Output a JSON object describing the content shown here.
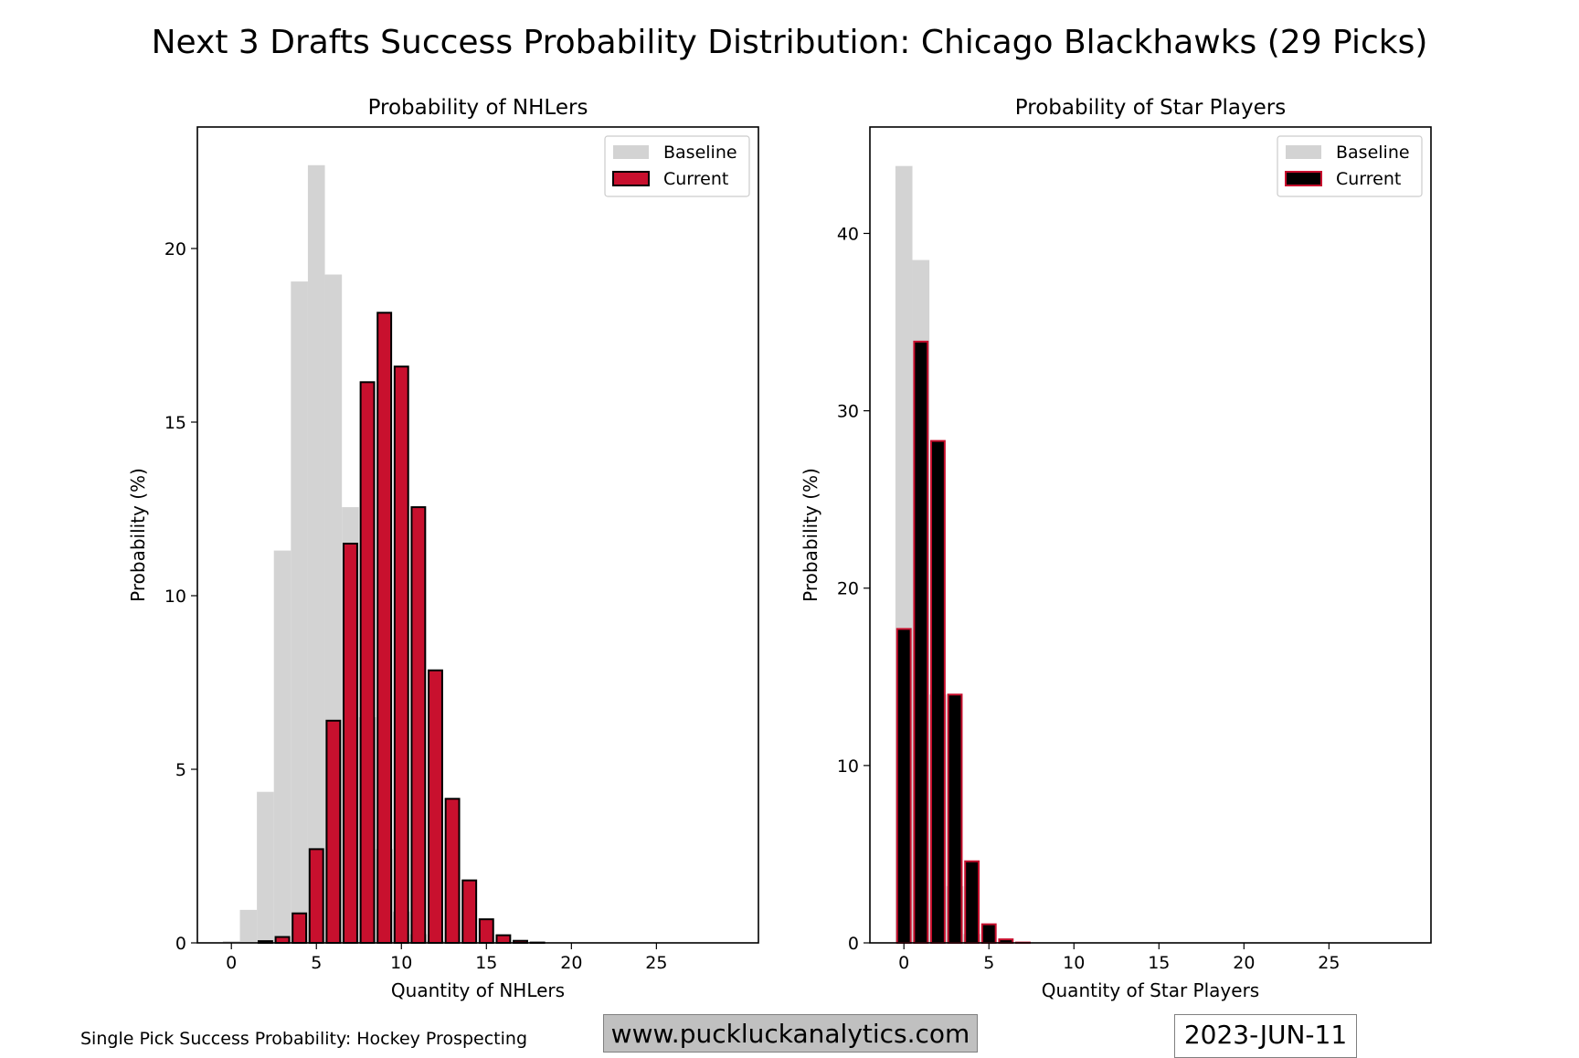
{
  "header": {
    "title": "Next 3 Drafts Success Probability Distribution: Chicago Blackhawks (29 Picks)"
  },
  "footer": {
    "source": "Single Pick Success Probability: Hockey Prospecting",
    "url": "www.puckluckanalytics.com",
    "date": "2023-JUN-11"
  },
  "colors": {
    "baseline": "#d3d3d3",
    "nhl_current": "#c8102e",
    "star_current": "#000000",
    "edge_red": "#c8102e",
    "edge_black": "#000000"
  },
  "chart_data": [
    {
      "type": "bar",
      "title": "Probability of NHLers",
      "xlabel": "Quantity of NHLers",
      "ylabel": "Probability (%)",
      "xlim": [
        -2,
        31
      ],
      "ylim": [
        0,
        23.5
      ],
      "xticks": [
        0,
        5,
        10,
        15,
        20,
        25
      ],
      "yticks": [
        0,
        5,
        10,
        15,
        20
      ],
      "legend": [
        "Baseline",
        "Current"
      ],
      "legend_loc": "upper right",
      "series": [
        {
          "name": "Baseline",
          "x": [
            0,
            1,
            2,
            3,
            4,
            5,
            6,
            7,
            8,
            9,
            10,
            11,
            12,
            13,
            14,
            15,
            16,
            17,
            18,
            19,
            20,
            21,
            22,
            23,
            24,
            25,
            26,
            27,
            28,
            29
          ],
          "values": [
            0.05,
            0.95,
            4.35,
            11.3,
            19.05,
            22.4,
            19.25,
            12.55,
            6.5,
            2.7,
            0.9,
            0.25,
            0.06,
            0,
            0,
            0,
            0,
            0,
            0,
            0,
            0,
            0,
            0,
            0,
            0,
            0,
            0,
            0,
            0,
            0
          ]
        },
        {
          "name": "Current",
          "x": [
            0,
            1,
            2,
            3,
            4,
            5,
            6,
            7,
            8,
            9,
            10,
            11,
            12,
            13,
            14,
            15,
            16,
            17,
            18,
            19,
            20,
            21,
            22,
            23,
            24,
            25,
            26,
            27,
            28,
            29
          ],
          "values": [
            0,
            0,
            0.05,
            0.17,
            0.85,
            2.7,
            6.4,
            11.5,
            16.15,
            18.15,
            16.6,
            12.55,
            7.85,
            4.15,
            1.8,
            0.68,
            0.22,
            0.06,
            0.01,
            0,
            0,
            0,
            0,
            0,
            0,
            0,
            0,
            0,
            0,
            0
          ]
        }
      ]
    },
    {
      "type": "bar",
      "title": "Probability of Star Players",
      "xlabel": "Quantity of Star Players",
      "ylabel": "Probability (%)",
      "xlim": [
        -2,
        31
      ],
      "ylim": [
        0,
        46
      ],
      "xticks": [
        0,
        5,
        10,
        15,
        20,
        25
      ],
      "yticks": [
        0,
        10,
        20,
        30,
        40
      ],
      "legend": [
        "Baseline",
        "Current"
      ],
      "legend_loc": "upper right",
      "series": [
        {
          "name": "Baseline",
          "x": [
            0,
            1,
            2,
            3,
            4,
            5,
            6,
            7,
            8,
            9,
            10,
            11,
            12,
            13,
            14,
            15,
            16,
            17,
            18,
            19,
            20,
            21,
            22,
            23,
            24,
            25,
            26,
            27,
            28,
            29
          ],
          "values": [
            43.8,
            38.5,
            14.0,
            3.2,
            0.5,
            0.05,
            0,
            0,
            0,
            0,
            0,
            0,
            0,
            0,
            0,
            0,
            0,
            0,
            0,
            0,
            0,
            0,
            0,
            0,
            0,
            0,
            0,
            0,
            0,
            0
          ]
        },
        {
          "name": "Current",
          "x": [
            0,
            1,
            2,
            3,
            4,
            5,
            6,
            7,
            8,
            9,
            10,
            11,
            12,
            13,
            14,
            15,
            16,
            17,
            18,
            19,
            20,
            21,
            22,
            23,
            24,
            25,
            26,
            27,
            28,
            29
          ],
          "values": [
            17.7,
            33.9,
            28.3,
            14.0,
            4.6,
            1.05,
            0.2,
            0.02,
            0,
            0,
            0,
            0,
            0,
            0,
            0,
            0,
            0,
            0,
            0,
            0,
            0,
            0,
            0,
            0,
            0,
            0,
            0,
            0,
            0,
            0
          ]
        }
      ]
    }
  ]
}
